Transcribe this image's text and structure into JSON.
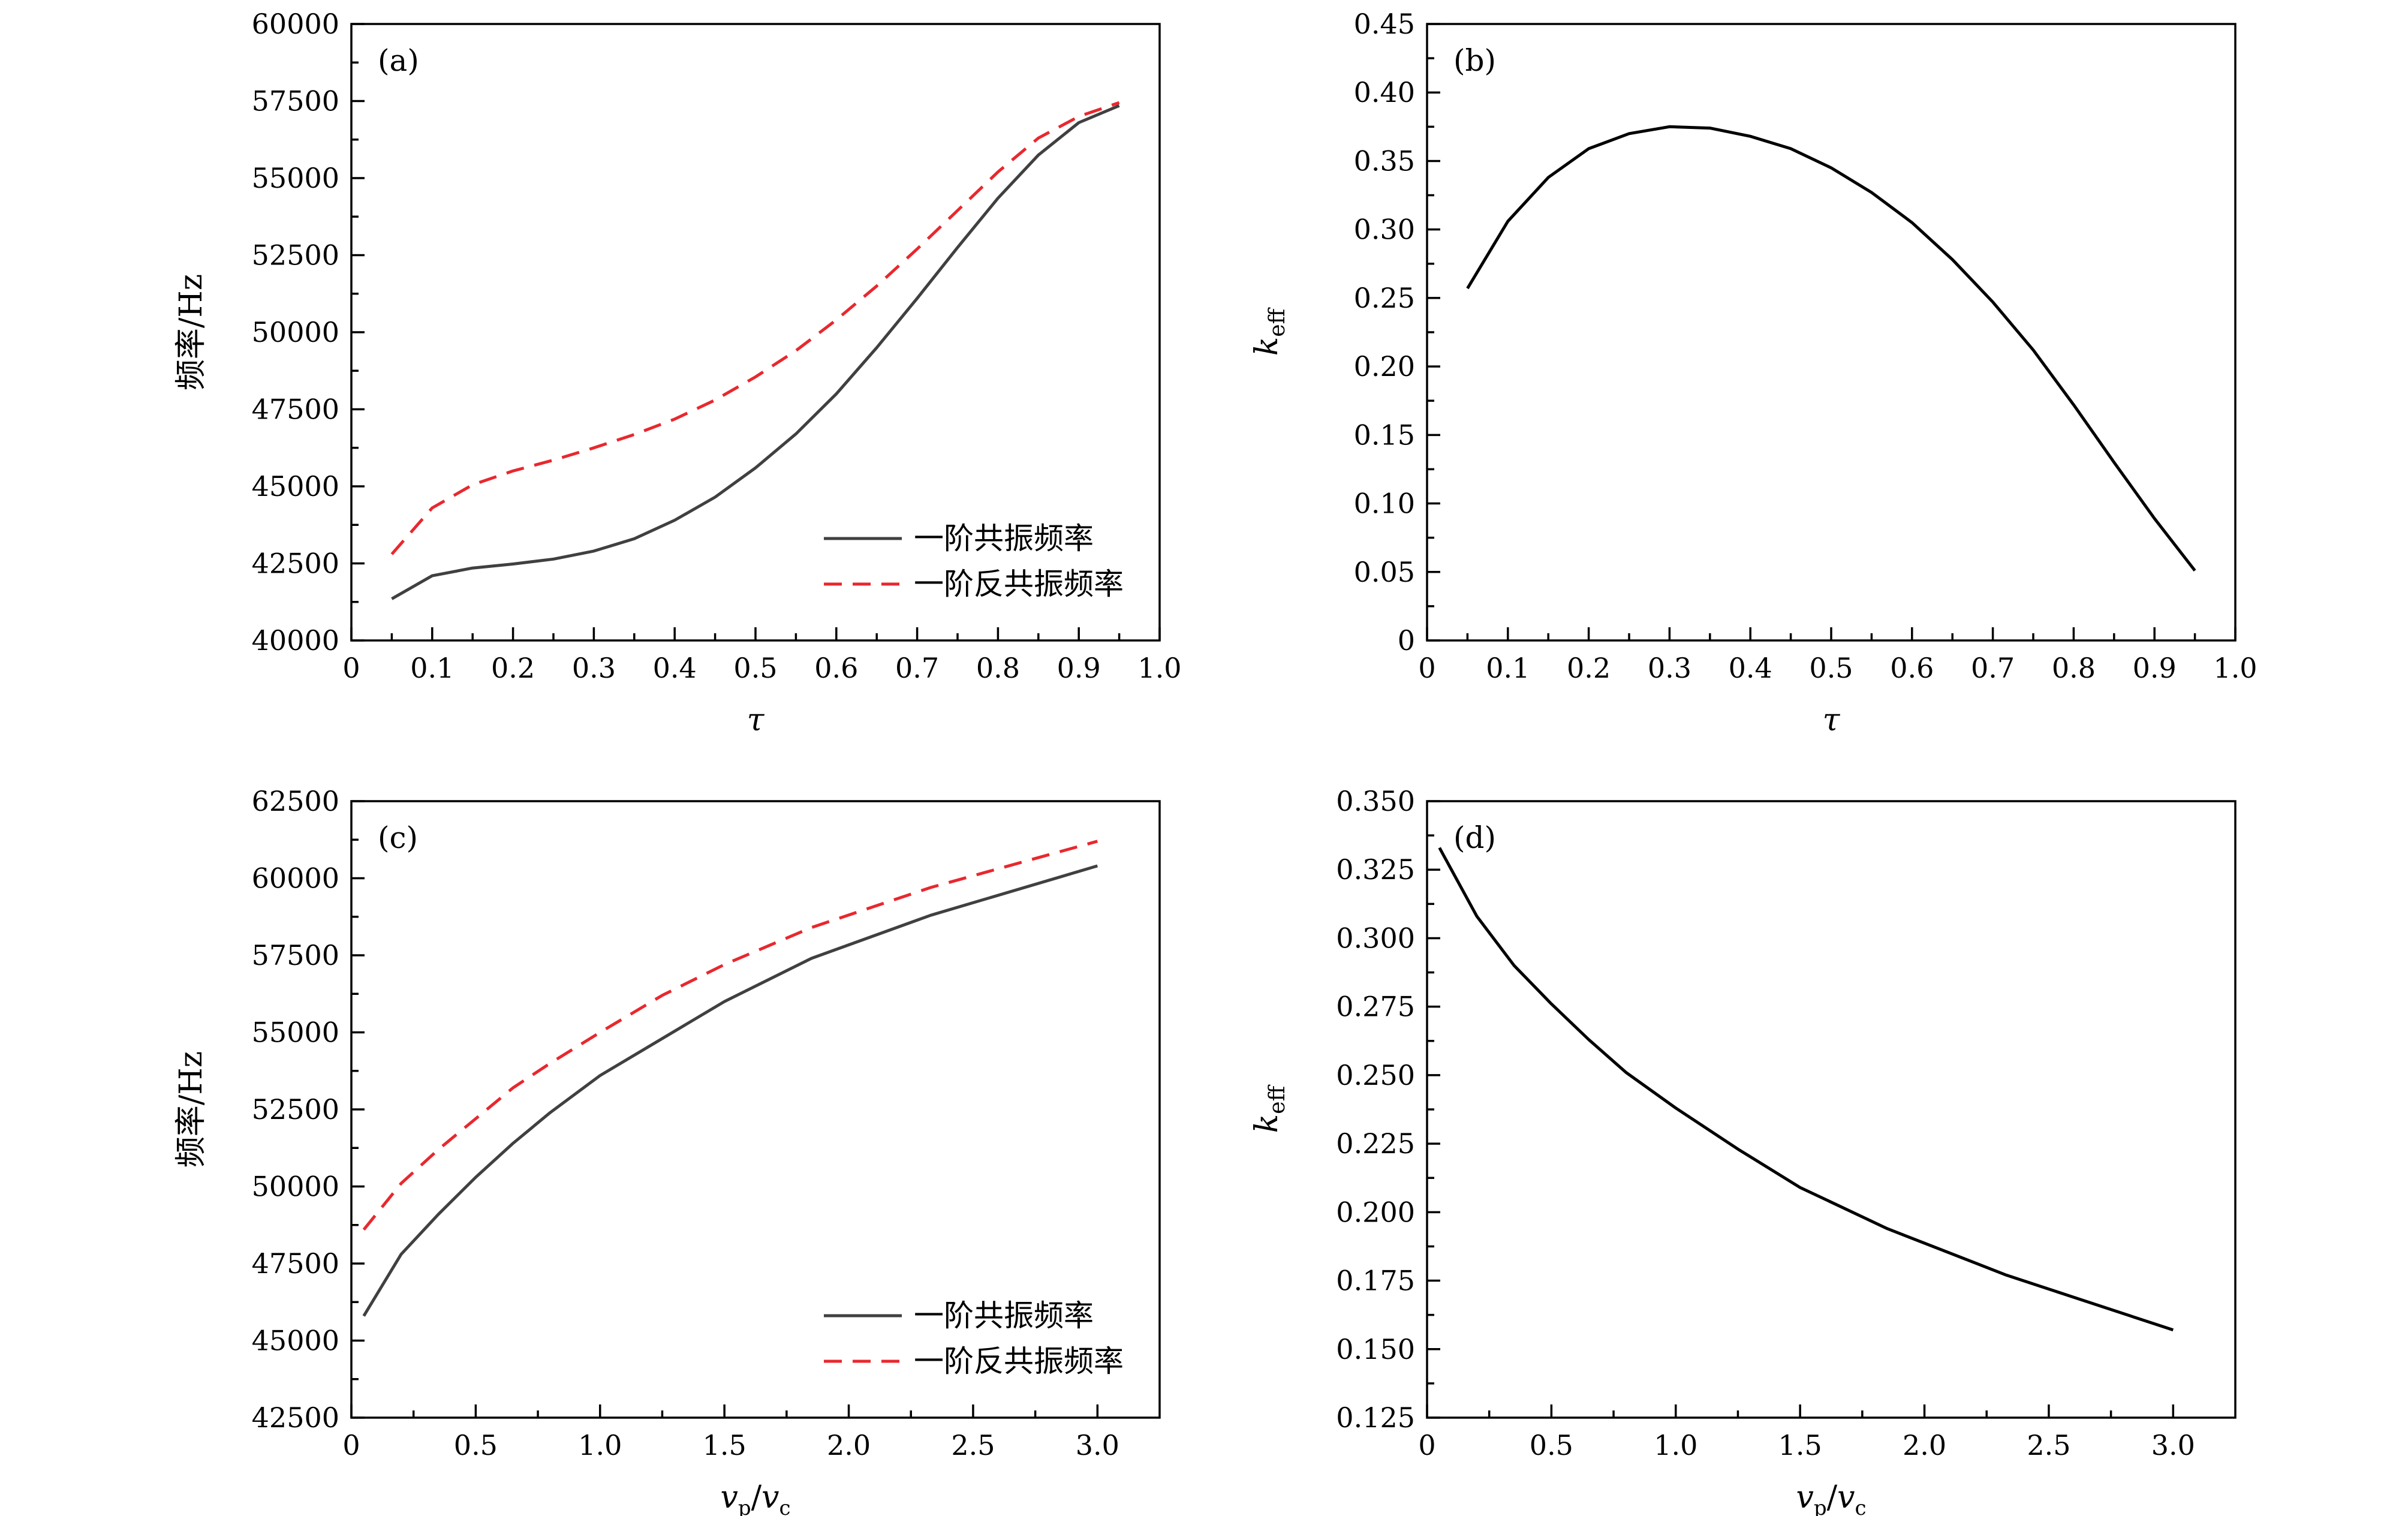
{
  "chart_data": [
    {
      "id": "a",
      "type": "line",
      "panel_label": "(a)",
      "xlabel": "τ",
      "ylabel": "频率/Hz",
      "xlim": [
        0,
        1.0
      ],
      "ylim": [
        40000,
        60000
      ],
      "xticks": [
        0,
        0.1,
        0.2,
        0.3,
        0.4,
        0.5,
        0.6,
        0.7,
        0.8,
        0.9,
        1.0
      ],
      "xtick_labels": [
        "0",
        "0.1",
        "0.2",
        "0.3",
        "0.4",
        "0.5",
        "0.6",
        "0.7",
        "0.8",
        "0.9",
        "1.0"
      ],
      "yticks": [
        40000,
        42500,
        45000,
        47500,
        50000,
        52500,
        55000,
        57500,
        60000
      ],
      "ytick_labels": [
        "40000",
        "42500",
        "45000",
        "47500",
        "50000",
        "52500",
        "55000",
        "57500",
        "60000"
      ],
      "legend": "bottom-right",
      "grid": false,
      "series": [
        {
          "name": "一阶共振频率",
          "color": "#404040",
          "dash": "solid",
          "x": [
            0.05,
            0.1,
            0.15,
            0.2,
            0.25,
            0.3,
            0.35,
            0.4,
            0.45,
            0.5,
            0.55,
            0.6,
            0.65,
            0.7,
            0.75,
            0.8,
            0.85,
            0.9,
            0.95
          ],
          "y": [
            41350,
            42100,
            42350,
            42480,
            42640,
            42900,
            43300,
            43900,
            44650,
            45600,
            46700,
            48000,
            49500,
            51100,
            52750,
            54350,
            55750,
            56800,
            57350
          ]
        },
        {
          "name": "一阶反共振频率",
          "color": "#e8282e",
          "dash": "dashed",
          "x": [
            0.05,
            0.1,
            0.15,
            0.2,
            0.25,
            0.3,
            0.35,
            0.4,
            0.45,
            0.5,
            0.55,
            0.6,
            0.65,
            0.7,
            0.75,
            0.8,
            0.85,
            0.9,
            0.95
          ],
          "y": [
            42800,
            44300,
            45050,
            45500,
            45850,
            46250,
            46680,
            47180,
            47800,
            48550,
            49400,
            50400,
            51500,
            52700,
            53950,
            55200,
            56300,
            57000,
            57450
          ]
        }
      ]
    },
    {
      "id": "b",
      "type": "line",
      "panel_label": "(b)",
      "xlabel": "τ",
      "ylabel": "k",
      "ylabel_sub": "eff",
      "xlim": [
        0,
        1.0
      ],
      "ylim": [
        0,
        0.45
      ],
      "xticks": [
        0,
        0.1,
        0.2,
        0.3,
        0.4,
        0.5,
        0.6,
        0.7,
        0.8,
        0.9,
        1.0
      ],
      "xtick_labels": [
        "0",
        "0.1",
        "0.2",
        "0.3",
        "0.4",
        "0.5",
        "0.6",
        "0.7",
        "0.8",
        "0.9",
        "1.0"
      ],
      "yticks": [
        0,
        0.05,
        0.1,
        0.15,
        0.2,
        0.25,
        0.3,
        0.35,
        0.4,
        0.45
      ],
      "ytick_labels": [
        "0",
        "0.05",
        "0.10",
        "0.15",
        "0.20",
        "0.25",
        "0.30",
        "0.35",
        "0.40",
        "0.45"
      ],
      "grid": false,
      "series": [
        {
          "color": "#000000",
          "dash": "solid",
          "x": [
            0.05,
            0.1,
            0.15,
            0.2,
            0.25,
            0.3,
            0.35,
            0.4,
            0.45,
            0.5,
            0.55,
            0.6,
            0.65,
            0.7,
            0.75,
            0.8,
            0.85,
            0.9,
            0.95
          ],
          "y": [
            0.257,
            0.306,
            0.338,
            0.359,
            0.37,
            0.375,
            0.374,
            0.368,
            0.359,
            0.345,
            0.327,
            0.305,
            0.278,
            0.247,
            0.212,
            0.172,
            0.13,
            0.089,
            0.051
          ]
        }
      ]
    },
    {
      "id": "c",
      "type": "line",
      "panel_label": "(c)",
      "xlabel": "v",
      "xlabel_parts": [
        "v",
        "p",
        "/",
        "v",
        "c"
      ],
      "ylabel": "频率/Hz",
      "xlim": [
        0,
        3.25
      ],
      "ylim": [
        42500,
        62500
      ],
      "xticks": [
        0,
        0.5,
        1.0,
        1.5,
        2.0,
        2.5,
        3.0
      ],
      "xtick_labels": [
        "0",
        "0.5",
        "1.0",
        "1.5",
        "2.0",
        "2.5",
        "3.0"
      ],
      "yticks": [
        42500,
        45000,
        47500,
        50000,
        52500,
        55000,
        57500,
        60000,
        62500
      ],
      "ytick_labels": [
        "42500",
        "45000",
        "47500",
        "50000",
        "52500",
        "55000",
        "57500",
        "60000",
        "62500"
      ],
      "legend": "bottom-right",
      "grid": false,
      "series": [
        {
          "name": "一阶共振频率",
          "color": "#404040",
          "dash": "solid",
          "x": [
            0.05,
            0.2,
            0.35,
            0.5,
            0.65,
            0.8,
            1.0,
            1.25,
            1.5,
            1.85,
            2.33,
            3.0
          ],
          "y": [
            45800,
            47800,
            49100,
            50300,
            51400,
            52400,
            53600,
            54800,
            56000,
            57400,
            58800,
            60400
          ]
        },
        {
          "name": "一阶反共振频率",
          "color": "#e8282e",
          "dash": "dashed",
          "x": [
            0.05,
            0.2,
            0.35,
            0.5,
            0.65,
            0.8,
            1.0,
            1.25,
            1.5,
            1.85,
            2.33,
            3.0
          ],
          "y": [
            48600,
            50100,
            51200,
            52200,
            53200,
            54000,
            55000,
            56200,
            57200,
            58400,
            59700,
            61200
          ]
        }
      ]
    },
    {
      "id": "d",
      "type": "line",
      "panel_label": "(d)",
      "xlabel": "v",
      "xlabel_parts": [
        "v",
        "p",
        "/",
        "v",
        "c"
      ],
      "ylabel": "k",
      "ylabel_sub": "eff",
      "xlim": [
        0,
        3.25
      ],
      "ylim": [
        0.125,
        0.35
      ],
      "xticks": [
        0,
        0.5,
        1.0,
        1.5,
        2.0,
        2.5,
        3.0
      ],
      "xtick_labels": [
        "0",
        "0.5",
        "1.0",
        "1.5",
        "2.0",
        "2.5",
        "3.0"
      ],
      "yticks": [
        0.125,
        0.15,
        0.175,
        0.2,
        0.225,
        0.25,
        0.275,
        0.3,
        0.325,
        0.35
      ],
      "ytick_labels": [
        "0.125",
        "0.150",
        "0.175",
        "0.200",
        "0.225",
        "0.250",
        "0.275",
        "0.300",
        "0.325",
        "0.350"
      ],
      "grid": false,
      "series": [
        {
          "color": "#000000",
          "dash": "solid",
          "x": [
            0.05,
            0.2,
            0.35,
            0.5,
            0.65,
            0.8,
            1.0,
            1.25,
            1.5,
            1.85,
            2.33,
            3.0
          ],
          "y": [
            0.333,
            0.308,
            0.29,
            0.276,
            0.263,
            0.251,
            0.238,
            0.223,
            0.209,
            0.194,
            0.177,
            0.157
          ]
        }
      ]
    }
  ]
}
